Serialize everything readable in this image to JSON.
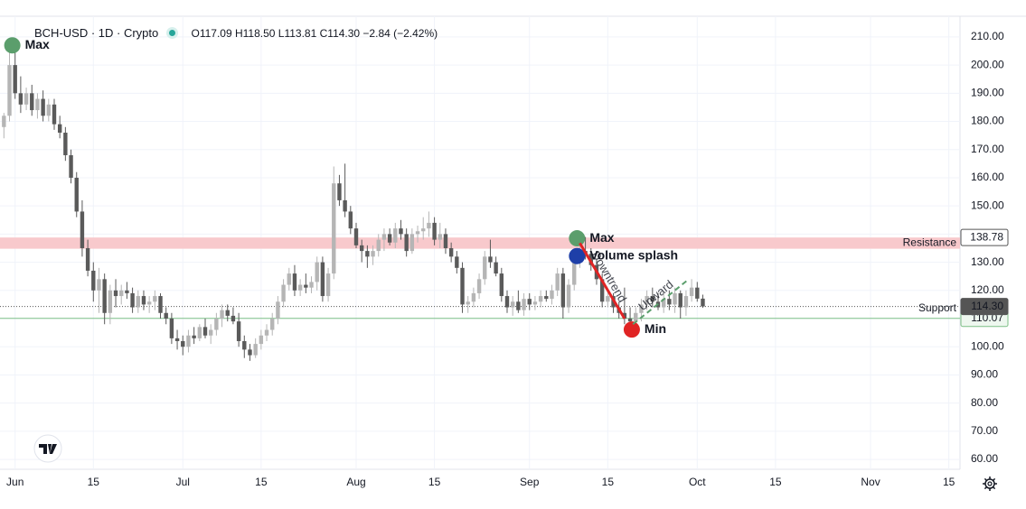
{
  "chart_data": {
    "type": "candlestick",
    "title": "BCH-USD · 1D · Crypto",
    "subtitle": "O117.09 H118.50 L113.81 C114.30 −2.84 (−2.42%)",
    "xlim": [
      -0.7,
      171
    ],
    "ylim": [
      56.5,
      223.1
    ],
    "xticks": [
      {
        "value": 2,
        "label": "Jun"
      },
      {
        "value": 16,
        "label": "15"
      },
      {
        "value": 32,
        "label": "Jul"
      },
      {
        "value": 46,
        "label": "15"
      },
      {
        "value": 63,
        "label": "Aug"
      },
      {
        "value": 77,
        "label": "15"
      },
      {
        "value": 94,
        "label": "Sep"
      },
      {
        "value": 108,
        "label": "15"
      },
      {
        "value": 124,
        "label": "Oct"
      },
      {
        "value": 138,
        "label": "15"
      },
      {
        "value": 155,
        "label": "Nov"
      },
      {
        "value": 169,
        "label": "15"
      }
    ],
    "yticks": [
      {
        "value": 60,
        "label": "60.00"
      },
      {
        "value": 70,
        "label": "70.00"
      },
      {
        "value": 80,
        "label": "80.00"
      },
      {
        "value": 90,
        "label": "90.00"
      },
      {
        "value": 100,
        "label": "100.00"
      },
      {
        "value": 110,
        "label": "110.00"
      },
      {
        "value": 120,
        "label": "120.00"
      },
      {
        "value": 130,
        "label": "130.00"
      },
      {
        "value": 140,
        "label": "140.00"
      },
      {
        "value": 150,
        "label": "150.00"
      },
      {
        "value": 160,
        "label": "160.00"
      },
      {
        "value": 170,
        "label": "170.00"
      },
      {
        "value": 180,
        "label": "180.00"
      },
      {
        "value": 190,
        "label": "190.00"
      },
      {
        "value": 200,
        "label": "200.00"
      },
      {
        "value": 210,
        "label": "210.00"
      }
    ],
    "grid": true,
    "up_color": "#b5b5b5",
    "down_color": "#5a5a5a",
    "open": [
      178,
      182,
      200,
      190,
      186,
      190,
      184,
      188,
      182,
      186,
      179,
      176,
      168,
      160,
      148,
      135,
      127,
      120,
      124,
      112,
      120,
      118,
      120,
      119,
      114,
      118,
      115,
      116,
      118,
      112,
      110,
      103,
      102,
      100,
      104,
      103,
      107,
      104,
      106,
      110,
      113,
      111,
      109,
      102,
      99,
      97,
      101,
      104,
      106,
      110,
      116,
      122,
      126,
      120,
      122,
      121,
      123,
      130,
      118,
      126,
      158,
      152,
      148,
      142,
      136,
      134,
      132,
      134,
      138,
      140,
      137,
      142,
      140,
      134,
      140,
      141,
      142,
      144,
      138,
      140,
      135,
      132,
      128,
      115,
      116,
      119,
      124,
      132,
      130,
      126,
      118,
      114,
      116,
      113,
      117,
      115,
      116,
      118,
      117,
      120,
      126,
      114,
      122,
      130,
      134,
      133,
      129,
      124,
      116,
      118,
      114,
      112,
      110,
      109,
      112,
      115,
      118,
      116,
      114,
      117,
      115,
      119,
      114,
      118,
      121,
      117.09
    ],
    "high": [
      183,
      205,
      208,
      196,
      192,
      193,
      190,
      191,
      188,
      188,
      182,
      178,
      170,
      162,
      152,
      138,
      130,
      128,
      126,
      122,
      124,
      122,
      123,
      121,
      120,
      120,
      118,
      120,
      119,
      114,
      112,
      106,
      104,
      106,
      107,
      108,
      110,
      108,
      112,
      115,
      115,
      114,
      112,
      104,
      101,
      103,
      106,
      108,
      112,
      118,
      124,
      128,
      129,
      124,
      126,
      125,
      132,
      132,
      128,
      164,
      161,
      165,
      150,
      144,
      138,
      136,
      136,
      140,
      142,
      142,
      144,
      145,
      142,
      142,
      143,
      146,
      148,
      146,
      144,
      142,
      137,
      134,
      130,
      118,
      121,
      126,
      134,
      138,
      132,
      128,
      120,
      118,
      120,
      119,
      119,
      118,
      120,
      120,
      122,
      128,
      128,
      124,
      133,
      136,
      139,
      135,
      131,
      126,
      120,
      119,
      116,
      121,
      114,
      114,
      117,
      120,
      121,
      119,
      119,
      120,
      121,
      120,
      120,
      124,
      123,
      118.5
    ],
    "low": [
      174,
      180,
      188,
      183,
      184,
      182,
      181,
      180,
      180,
      177,
      174,
      166,
      158,
      146,
      132,
      125,
      116,
      112,
      108,
      108,
      114,
      115,
      117,
      112,
      112,
      113,
      112,
      113,
      110,
      108,
      101,
      99,
      97,
      98,
      101,
      102,
      103,
      101,
      104,
      107,
      109,
      108,
      100,
      96,
      95,
      96,
      99,
      102,
      104,
      108,
      114,
      120,
      118,
      118,
      119,
      119,
      120,
      116,
      116,
      124,
      150,
      146,
      140,
      135,
      130,
      128,
      129,
      132,
      134,
      136,
      135,
      138,
      132,
      133,
      137,
      138,
      139,
      136,
      135,
      133,
      130,
      126,
      112,
      112,
      114,
      117,
      122,
      128,
      125,
      116,
      112,
      111,
      112,
      111,
      113,
      113,
      114,
      116,
      115,
      118,
      110,
      112,
      120,
      128,
      131,
      127,
      122,
      114,
      114,
      112,
      110,
      108,
      107,
      107,
      109,
      113,
      114,
      113,
      112,
      113,
      112,
      110,
      111,
      116,
      116,
      113.81
    ],
    "close": [
      182,
      200,
      190,
      186,
      190,
      184,
      188,
      182,
      186,
      179,
      176,
      168,
      160,
      148,
      135,
      127,
      120,
      124,
      112,
      120,
      118,
      120,
      119,
      114,
      118,
      115,
      116,
      118,
      112,
      110,
      103,
      102,
      100,
      104,
      103,
      107,
      104,
      106,
      110,
      113,
      111,
      109,
      102,
      99,
      97,
      101,
      104,
      106,
      110,
      116,
      122,
      126,
      120,
      122,
      121,
      123,
      130,
      118,
      126,
      158,
      152,
      148,
      142,
      136,
      134,
      132,
      134,
      138,
      140,
      137,
      142,
      140,
      134,
      140,
      141,
      142,
      144,
      138,
      140,
      135,
      132,
      128,
      115,
      116,
      119,
      124,
      132,
      130,
      126,
      118,
      114,
      116,
      113,
      117,
      115,
      116,
      118,
      117,
      120,
      126,
      114,
      122,
      130,
      134,
      133,
      129,
      124,
      116,
      118,
      114,
      112,
      110,
      109,
      112,
      115,
      118,
      116,
      114,
      117,
      115,
      119,
      114,
      118,
      121,
      117.09,
      114.3
    ],
    "resistance": {
      "label": "Resistance",
      "value": 138.78,
      "low": 134.8,
      "color": "#f8c9cc",
      "text_color": "#e05a5a"
    },
    "support": {
      "label": "Support",
      "value": 110.07,
      "color": "#7cbf85"
    },
    "last_price": {
      "value": 114.3,
      "label": "114.30"
    },
    "annotations": [
      {
        "type": "marker",
        "label": "Max",
        "x": 1.5,
        "y": 207,
        "color": "#5b9e6c"
      },
      {
        "type": "marker",
        "label": "Max",
        "x": 102.5,
        "y": 138.5,
        "color": "#5b9e6c"
      },
      {
        "type": "marker",
        "label": "Volume splash",
        "x": 102.5,
        "y": 132.2,
        "color": "#1e3fa8"
      },
      {
        "type": "marker",
        "label": "Min",
        "x": 112.3,
        "y": 106.1,
        "color": "#e02424"
      },
      {
        "type": "trend",
        "label": "Downtrend",
        "x": [
          103,
          111
        ],
        "y": [
          136.8,
          110
        ],
        "color": "#e02424"
      },
      {
        "type": "trend",
        "label": "Upward",
        "x": [
          112.5,
          122.5
        ],
        "y": [
          108,
          124
        ],
        "color": "#5b9e6c",
        "dashed": true
      }
    ]
  }
}
